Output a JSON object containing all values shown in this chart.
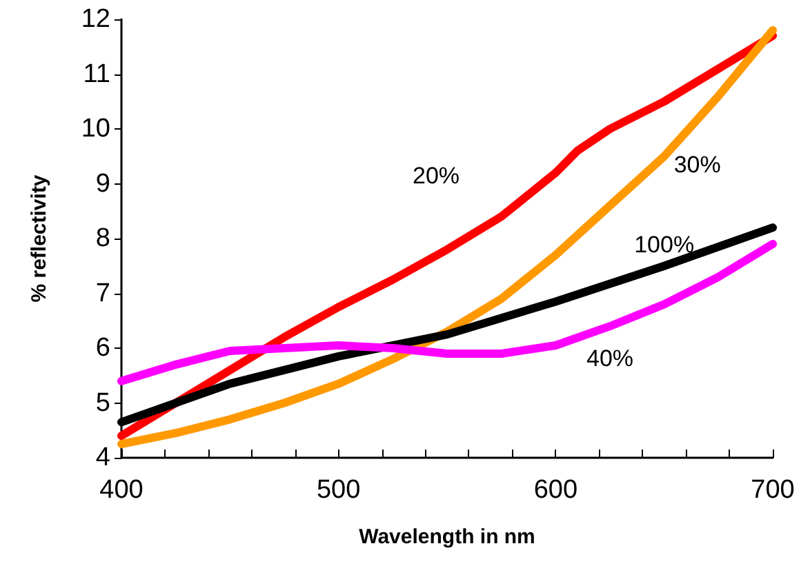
{
  "chart_data": {
    "type": "line",
    "xlabel": "Wavelength in nm",
    "ylabel": "% reflectivity",
    "xlim": [
      400,
      700
    ],
    "xticks": [
      400,
      {
        "value": 420,
        "label": null
      },
      {
        "value": 440,
        "label": null
      },
      {
        "value": 460,
        "label": null
      },
      {
        "value": 480,
        "label": null
      },
      500,
      {
        "value": 520,
        "label": null
      },
      {
        "value": 540,
        "label": null
      },
      {
        "value": 560,
        "label": null
      },
      {
        "value": 580,
        "label": null
      },
      600,
      {
        "value": 620,
        "label": null
      },
      {
        "value": 640,
        "label": null
      },
      {
        "value": 660,
        "label": null
      },
      {
        "value": 680,
        "label": null
      },
      700
    ],
    "ylim": [
      4,
      12
    ],
    "yticks": [
      4,
      5,
      6,
      7,
      8,
      9,
      10,
      11,
      12
    ],
    "grid": false,
    "legend": false,
    "marker": "none",
    "line_style": "solid",
    "series": [
      {
        "name": "20%",
        "color": "#ff0000",
        "x": [
          400,
          425,
          450,
          475,
          500,
          525,
          550,
          575,
          600,
          605,
          610,
          625,
          650,
          675,
          700
        ],
        "values": [
          4.4,
          5.0,
          5.6,
          6.2,
          6.75,
          7.25,
          7.8,
          8.4,
          9.2,
          9.4,
          9.6,
          10.0,
          10.5,
          11.1,
          11.7
        ]
      },
      {
        "name": "30%",
        "color": "#ff9900",
        "x": [
          400,
          425,
          450,
          475,
          500,
          525,
          550,
          575,
          600,
          625,
          650,
          675,
          700
        ],
        "values": [
          4.25,
          4.45,
          4.7,
          5.0,
          5.35,
          5.8,
          6.3,
          6.9,
          7.7,
          8.6,
          9.5,
          10.6,
          11.8
        ]
      },
      {
        "name": "100%",
        "color": "#000000",
        "x": [
          400,
          450,
          500,
          550,
          600,
          650,
          700
        ],
        "values": [
          4.65,
          5.35,
          5.85,
          6.25,
          6.85,
          7.5,
          8.2
        ]
      },
      {
        "name": "40%",
        "color": "#ff00ff",
        "x": [
          400,
          425,
          450,
          475,
          500,
          525,
          550,
          575,
          600,
          625,
          650,
          675,
          700
        ],
        "values": [
          5.4,
          5.7,
          5.95,
          6.0,
          6.05,
          6.0,
          5.9,
          5.9,
          6.05,
          6.4,
          6.8,
          7.3,
          7.9
        ]
      }
    ]
  }
}
